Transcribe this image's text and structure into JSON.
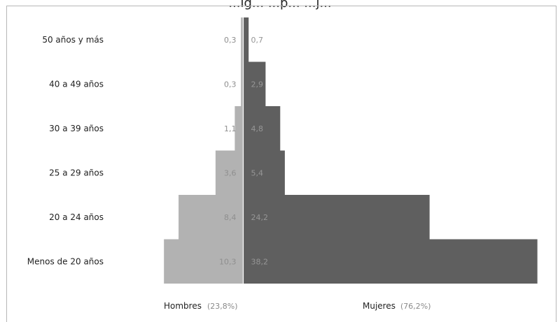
{
  "chart_data": {
    "type": "bar",
    "orientation": "horizontal",
    "layout": "population-pyramid",
    "title": "...ig... ...p... ...j...",
    "categories": [
      "50 años y más",
      "40 a 49 años",
      "30 a 39 años",
      "25 a 29 años",
      "20 a 24 años",
      "Menos de 20 años"
    ],
    "series": [
      {
        "name": "Hombres",
        "share_label": "(23,8%)",
        "side": "left",
        "color": "#b2b2b2",
        "values": [
          0.3,
          0.3,
          1.1,
          3.6,
          8.4,
          10.3
        ],
        "value_labels": [
          "0,3",
          "0,3",
          "1,1",
          "3,6",
          "8,4",
          "10,3"
        ]
      },
      {
        "name": "Mujeres",
        "share_label": "(76,2%)",
        "side": "right",
        "color": "#5f5f5f",
        "values": [
          0.7,
          2.9,
          4.8,
          5.4,
          24.2,
          38.2
        ],
        "value_labels": [
          "0,7",
          "2,9",
          "4,8",
          "5,4",
          "24,2",
          "38,2"
        ]
      }
    ],
    "grid": false,
    "legend_position": "bottom"
  }
}
